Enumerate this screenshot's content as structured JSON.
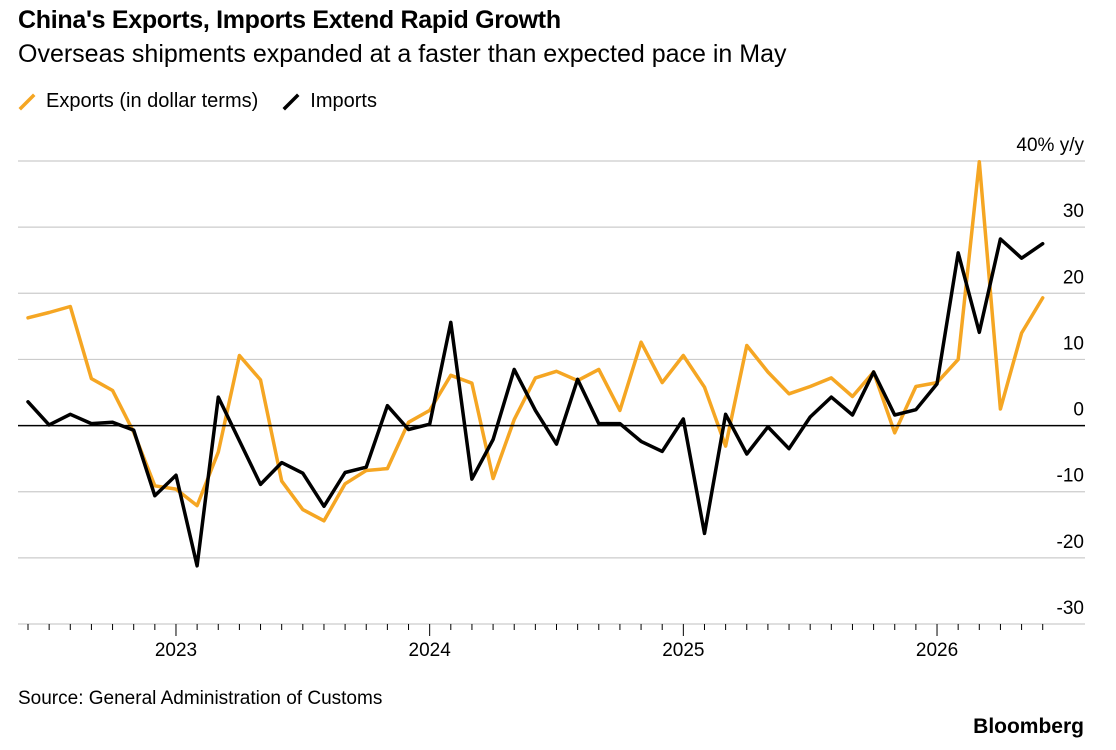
{
  "header": {
    "title": "China's Exports, Imports Extend Rapid Growth",
    "subtitle": "Overseas shipments expanded at a faster than expected pace in May"
  },
  "footer": {
    "source": "Source: General Administration of Customs",
    "brand": "Bloomberg"
  },
  "colors": {
    "exports": "#f5a623",
    "imports": "#000000",
    "grid": "#cccccc",
    "zero_line": "#000000"
  },
  "chart_data": {
    "type": "line",
    "title": "China's Exports, Imports Extend Rapid Growth",
    "subtitle": "Overseas shipments expanded at a faster than expected pace in May",
    "ylabel": "40% y/y",
    "ylim": [
      -30,
      40
    ],
    "y_ticks": [
      "40% y/y",
      "30",
      "20",
      "10",
      "0",
      "-10",
      "-20",
      "-30"
    ],
    "y_tick_values": [
      40,
      30,
      20,
      10,
      0,
      -10,
      -20,
      -30
    ],
    "x_tick_labels": [
      "2023",
      "2024",
      "2025",
      "2026"
    ],
    "x_start": "2022-06",
    "x_end": "2026-05",
    "grid": true,
    "legend_position": "top-left",
    "series": [
      {
        "name": "Exports (in dollar terms)",
        "color": "#f5a623",
        "values": [
          16.3,
          17.1,
          18.0,
          7.1,
          5.3,
          -1.0,
          -9.1,
          -9.6,
          -12.1,
          -4.0,
          10.6,
          6.9,
          -8.4,
          -12.7,
          -14.4,
          -8.8,
          -6.8,
          -6.5,
          0.5,
          2.3,
          7.6,
          6.4,
          -8.0,
          0.9,
          7.2,
          8.2,
          6.8,
          8.5,
          2.3,
          12.6,
          6.5,
          10.6,
          5.8,
          -3.1,
          12.1,
          8.1,
          4.8,
          5.9,
          7.2,
          4.4,
          8.1,
          -1.1,
          5.9,
          6.5,
          10.0,
          39.9,
          2.5,
          14.0,
          19.3
        ]
      },
      {
        "name": "Imports",
        "color": "#000000",
        "values": [
          3.6,
          0.1,
          1.7,
          0.3,
          0.5,
          -0.7,
          -10.6,
          -7.5,
          -21.2,
          4.3,
          -2.3,
          -8.9,
          -5.6,
          -7.2,
          -12.2,
          -7.1,
          -6.3,
          3.0,
          -0.6,
          0.2,
          15.6,
          -8.1,
          -2.1,
          8.5,
          2.3,
          -2.8,
          7.0,
          0.3,
          0.3,
          -2.4,
          -3.9,
          1.0,
          -16.3,
          1.7,
          -4.3,
          -0.2,
          -3.5,
          1.3,
          4.3,
          1.6,
          8.1,
          1.6,
          2.4,
          6.3,
          26.1,
          14.1,
          28.2,
          25.3,
          27.5
        ]
      }
    ]
  }
}
